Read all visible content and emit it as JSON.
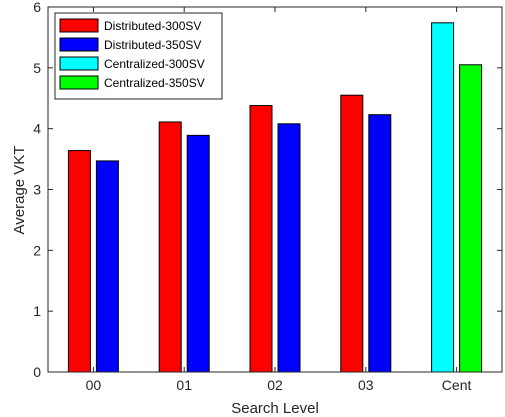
{
  "chart_data": {
    "type": "bar",
    "title": "",
    "xlabel": "Search Level",
    "ylabel": "Average VKT",
    "ylim": [
      0,
      6
    ],
    "yticks": [
      "0",
      "1",
      "2",
      "3",
      "4",
      "5",
      "6"
    ],
    "grid": false,
    "legend_position": "top-left",
    "categories": [
      "00",
      "01",
      "02",
      "03",
      "Cent"
    ],
    "series": [
      {
        "name": "Distributed-300SV",
        "color": "#ff0000",
        "values": [
          3.64,
          4.11,
          4.38,
          4.55,
          null
        ]
      },
      {
        "name": "Distributed-350SV",
        "color": "#0000ff",
        "values": [
          3.47,
          3.89,
          4.08,
          4.23,
          null
        ]
      },
      {
        "name": "Centralized-300SV",
        "color": "#00ffff",
        "values": [
          null,
          null,
          null,
          null,
          5.74
        ]
      },
      {
        "name": "Centralized-350SV",
        "color": "#00ff00",
        "values": [
          null,
          null,
          null,
          null,
          5.05
        ]
      }
    ]
  }
}
